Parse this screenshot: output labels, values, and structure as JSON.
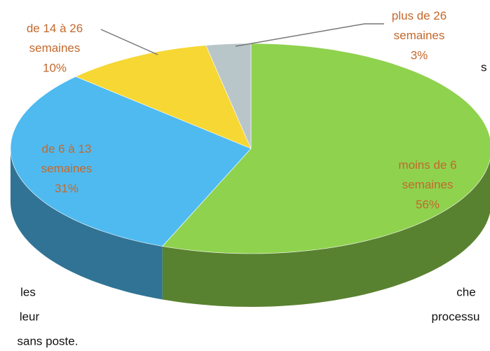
{
  "chart_data": {
    "type": "pie3d",
    "categories": [
      "moins de 6 semaines",
      "de 6 à 13 semaines",
      "de 14 à 26 semaines",
      "plus de 26 semaines"
    ],
    "values": [
      56,
      31,
      10,
      3
    ],
    "value_labels": [
      "56%",
      "31%",
      "10%",
      "3%"
    ],
    "colors": [
      "#8fd24e",
      "#4fbaf0",
      "#f6d734",
      "#b9c6c9"
    ]
  },
  "page_text": [
    "s",
    "les",
    "che",
    "leur",
    "processu",
    "sans poste."
  ]
}
